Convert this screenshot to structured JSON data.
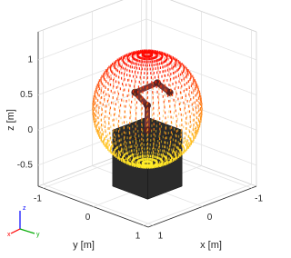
{
  "chart_data": {
    "type": "scatter3d",
    "xlabel": "x [m]",
    "ylabel": "y [m]",
    "zlabel": "z [m]",
    "xlim": [
      -1.1,
      1.1
    ],
    "ylim": [
      -1.1,
      1.1
    ],
    "zlim": [
      -0.8,
      1.4
    ],
    "xticks": [
      -1,
      0,
      1
    ],
    "yticks": [
      -1,
      0,
      1
    ],
    "zticks": [
      -0.5,
      0,
      0.5,
      1
    ],
    "grid": true
  },
  "triad": {
    "x": "x",
    "y": "y",
    "z": "z"
  }
}
